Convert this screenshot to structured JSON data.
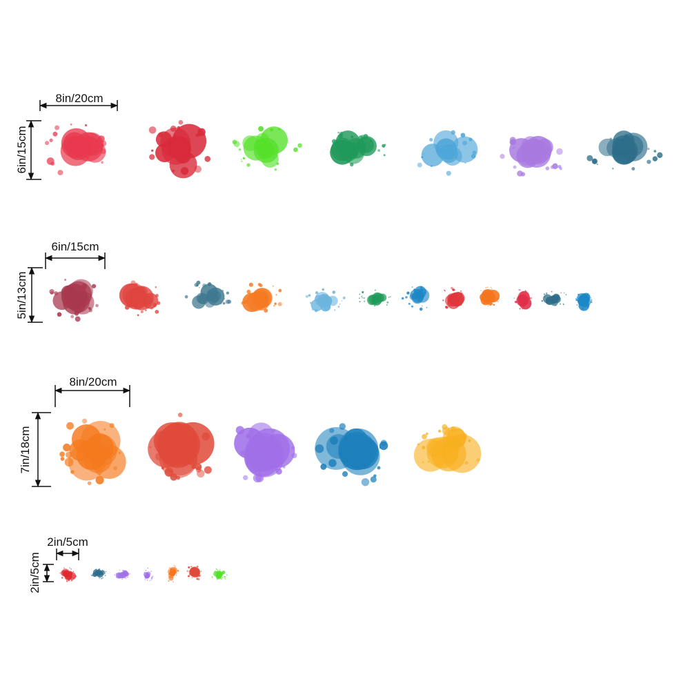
{
  "rows": [
    {
      "width": "8in/20cm",
      "height": "6in/15cm"
    },
    {
      "width": "6in/15cm",
      "height": "5in/13cm"
    },
    {
      "width": "8in/20cm",
      "height": "7in/18cm"
    },
    {
      "width": "2in/5cm",
      "height": "2in/5cm"
    }
  ]
}
